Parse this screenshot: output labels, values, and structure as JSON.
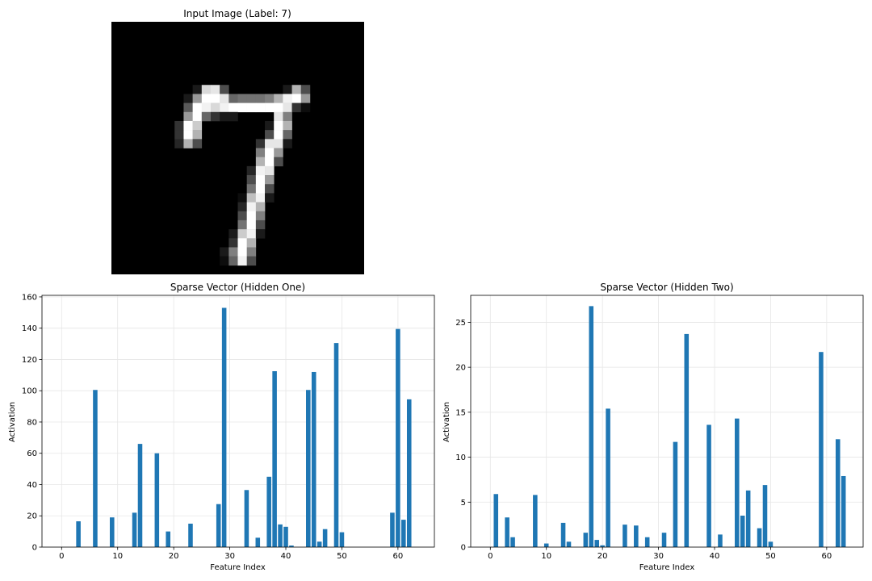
{
  "chart_data": [
    {
      "type": "heatmap",
      "title": "Input Image (Label: 7)",
      "colormap": "gray",
      "grid_size": [
        28,
        28
      ],
      "pixels_description_note": "",
      "pixels": [
        [
          0,
          0,
          0,
          0,
          0,
          0,
          0,
          0,
          0,
          0,
          0,
          0,
          0,
          0,
          0,
          0,
          0,
          0,
          0,
          0,
          0,
          0,
          0,
          0,
          0,
          0,
          0,
          0
        ],
        [
          0,
          0,
          0,
          0,
          0,
          0,
          0,
          0,
          0,
          0,
          0,
          0,
          0,
          0,
          0,
          0,
          0,
          0,
          0,
          0,
          0,
          0,
          0,
          0,
          0,
          0,
          0,
          0
        ],
        [
          0,
          0,
          0,
          0,
          0,
          0,
          0,
          0,
          0,
          0,
          0,
          0,
          0,
          0,
          0,
          0,
          0,
          0,
          0,
          0,
          0,
          0,
          0,
          0,
          0,
          0,
          0,
          0
        ],
        [
          0,
          0,
          0,
          0,
          0,
          0,
          0,
          0,
          0,
          0,
          0,
          0,
          0,
          0,
          0,
          0,
          0,
          0,
          0,
          0,
          0,
          0,
          0,
          0,
          0,
          0,
          0,
          0
        ],
        [
          0,
          0,
          0,
          0,
          0,
          0,
          0,
          0,
          0,
          0,
          0,
          0,
          0,
          0,
          0,
          0,
          0,
          0,
          0,
          0,
          0,
          0,
          0,
          0,
          0,
          0,
          0,
          0
        ],
        [
          0,
          0,
          0,
          0,
          0,
          0,
          0,
          0,
          0,
          0,
          0,
          0,
          0,
          0,
          0,
          0,
          0,
          0,
          0,
          0,
          0,
          0,
          0,
          0,
          0,
          0,
          0,
          0
        ],
        [
          0,
          0,
          0,
          0,
          0,
          0,
          0,
          0,
          0,
          0,
          0,
          0,
          0,
          0,
          0,
          0,
          0,
          0,
          0,
          0,
          0,
          0,
          0,
          0,
          0,
          0,
          0,
          0
        ],
        [
          0,
          0,
          0,
          0,
          0,
          0,
          0,
          0,
          0,
          0.1,
          0.85,
          0.9,
          0.3,
          0,
          0,
          0,
          0,
          0,
          0,
          0.1,
          0.7,
          0.3,
          0,
          0,
          0,
          0,
          0,
          0
        ],
        [
          0,
          0,
          0,
          0,
          0,
          0,
          0,
          0,
          0.1,
          0.6,
          1,
          1,
          0.9,
          0.4,
          0.45,
          0.45,
          0.45,
          0.5,
          0.7,
          0.95,
          1,
          0.6,
          0,
          0,
          0,
          0,
          0,
          0
        ],
        [
          0,
          0,
          0,
          0,
          0,
          0,
          0,
          0,
          0.35,
          1,
          0.95,
          0.85,
          0.95,
          1,
          1,
          1,
          1,
          1,
          1,
          0.9,
          0.2,
          0.05,
          0,
          0,
          0,
          0,
          0,
          0
        ],
        [
          0,
          0,
          0,
          0,
          0,
          0,
          0,
          0,
          0.6,
          1,
          0.4,
          0.2,
          0.1,
          0.1,
          0,
          0,
          0,
          0,
          0.9,
          0.5,
          0,
          0,
          0,
          0,
          0,
          0,
          0,
          0
        ],
        [
          0,
          0,
          0,
          0,
          0,
          0,
          0,
          0.2,
          1,
          0.8,
          0,
          0,
          0,
          0,
          0,
          0,
          0,
          0.1,
          1,
          0.7,
          0,
          0,
          0,
          0,
          0,
          0,
          0,
          0
        ],
        [
          0,
          0,
          0,
          0,
          0,
          0,
          0,
          0.2,
          1,
          0.7,
          0,
          0,
          0,
          0,
          0,
          0,
          0,
          0.3,
          1,
          0.4,
          0,
          0,
          0,
          0,
          0,
          0,
          0,
          0
        ],
        [
          0,
          0,
          0,
          0,
          0,
          0,
          0,
          0.15,
          0.7,
          0.3,
          0,
          0,
          0,
          0,
          0,
          0,
          0.2,
          0.9,
          0.9,
          0.1,
          0,
          0,
          0,
          0,
          0,
          0,
          0,
          0
        ],
        [
          0,
          0,
          0,
          0,
          0,
          0,
          0,
          0,
          0,
          0,
          0,
          0,
          0,
          0,
          0,
          0,
          0.5,
          1,
          0.6,
          0,
          0,
          0,
          0,
          0,
          0,
          0,
          0,
          0
        ],
        [
          0,
          0,
          0,
          0,
          0,
          0,
          0,
          0,
          0,
          0,
          0,
          0,
          0,
          0,
          0,
          0,
          0.7,
          1,
          0.3,
          0,
          0,
          0,
          0,
          0,
          0,
          0,
          0,
          0
        ],
        [
          0,
          0,
          0,
          0,
          0,
          0,
          0,
          0,
          0,
          0,
          0,
          0,
          0,
          0,
          0,
          0.15,
          0.95,
          0.9,
          0,
          0,
          0,
          0,
          0,
          0,
          0,
          0,
          0,
          0
        ],
        [
          0,
          0,
          0,
          0,
          0,
          0,
          0,
          0,
          0,
          0,
          0,
          0,
          0,
          0,
          0,
          0.3,
          1,
          0.6,
          0,
          0,
          0,
          0,
          0,
          0,
          0,
          0,
          0,
          0
        ],
        [
          0,
          0,
          0,
          0,
          0,
          0,
          0,
          0,
          0,
          0,
          0,
          0,
          0,
          0,
          0,
          0.45,
          1,
          0.3,
          0,
          0,
          0,
          0,
          0,
          0,
          0,
          0,
          0,
          0
        ],
        [
          0,
          0,
          0,
          0,
          0,
          0,
          0,
          0,
          0,
          0,
          0,
          0,
          0,
          0,
          0.05,
          0.75,
          0.95,
          0.1,
          0,
          0,
          0,
          0,
          0,
          0,
          0,
          0,
          0,
          0
        ],
        [
          0,
          0,
          0,
          0,
          0,
          0,
          0,
          0,
          0,
          0,
          0,
          0,
          0,
          0,
          0.15,
          0.95,
          0.7,
          0,
          0,
          0,
          0,
          0,
          0,
          0,
          0,
          0,
          0,
          0
        ],
        [
          0,
          0,
          0,
          0,
          0,
          0,
          0,
          0,
          0,
          0,
          0,
          0,
          0,
          0,
          0.3,
          1,
          0.5,
          0,
          0,
          0,
          0,
          0,
          0,
          0,
          0,
          0,
          0,
          0
        ],
        [
          0,
          0,
          0,
          0,
          0,
          0,
          0,
          0,
          0,
          0,
          0,
          0,
          0,
          0,
          0.45,
          1,
          0.3,
          0,
          0,
          0,
          0,
          0,
          0,
          0,
          0,
          0,
          0,
          0
        ],
        [
          0,
          0,
          0,
          0,
          0,
          0,
          0,
          0,
          0,
          0,
          0,
          0,
          0,
          0.1,
          0.8,
          0.95,
          0.1,
          0,
          0,
          0,
          0,
          0,
          0,
          0,
          0,
          0,
          0,
          0
        ],
        [
          0,
          0,
          0,
          0,
          0,
          0,
          0,
          0,
          0,
          0,
          0,
          0,
          0,
          0.2,
          1,
          0.7,
          0,
          0,
          0,
          0,
          0,
          0,
          0,
          0,
          0,
          0,
          0,
          0
        ],
        [
          0,
          0,
          0,
          0,
          0,
          0,
          0,
          0,
          0,
          0,
          0,
          0,
          0.1,
          0.5,
          1,
          0.5,
          0,
          0,
          0,
          0,
          0,
          0,
          0,
          0,
          0,
          0,
          0,
          0
        ],
        [
          0,
          0,
          0,
          0,
          0,
          0,
          0,
          0,
          0,
          0,
          0,
          0,
          0.05,
          0.4,
          0.95,
          0.3,
          0,
          0,
          0,
          0,
          0,
          0,
          0,
          0,
          0,
          0,
          0,
          0
        ],
        [
          0,
          0,
          0,
          0,
          0,
          0,
          0,
          0,
          0,
          0,
          0,
          0,
          0,
          0,
          0,
          0,
          0,
          0,
          0,
          0,
          0,
          0,
          0,
          0,
          0,
          0,
          0,
          0
        ]
      ]
    },
    {
      "type": "bar",
      "title": "Sparse Vector (Hidden One)",
      "xlabel": "Feature Index",
      "ylabel": "Activation",
      "xlim": [
        -3.5,
        66.5
      ],
      "ylim": [
        0,
        161
      ],
      "xticks": [
        0,
        10,
        20,
        30,
        40,
        50,
        60
      ],
      "yticks": [
        0,
        20,
        40,
        60,
        80,
        100,
        120,
        140,
        160
      ],
      "grid": true,
      "color": "#1f77b4",
      "x": [
        3,
        6,
        9,
        13,
        14,
        17,
        19,
        23,
        28,
        29,
        33,
        35,
        37,
        38,
        39,
        40,
        41,
        44,
        45,
        46,
        47,
        49,
        50,
        59,
        60,
        61,
        62
      ],
      "values": [
        16.5,
        100.5,
        19,
        22,
        66,
        60,
        10,
        15,
        27.5,
        153,
        36.5,
        6,
        45,
        112.5,
        14.5,
        13,
        1,
        100.5,
        112,
        3.5,
        11.5,
        130.5,
        9.5,
        22,
        139.5,
        17.5,
        94.5
      ]
    },
    {
      "type": "bar",
      "title": "Sparse Vector (Hidden Two)",
      "xlabel": "Feature Index",
      "ylabel": "Activation",
      "xlim": [
        -3.5,
        66.5
      ],
      "ylim": [
        0,
        28
      ],
      "xticks": [
        0,
        10,
        20,
        30,
        40,
        50,
        60
      ],
      "yticks": [
        0,
        5,
        10,
        15,
        20,
        25
      ],
      "grid": true,
      "color": "#1f77b4",
      "x": [
        1,
        3,
        4,
        8,
        10,
        13,
        14,
        17,
        18,
        19,
        20,
        21,
        24,
        26,
        28,
        31,
        33,
        35,
        39,
        41,
        44,
        45,
        46,
        48,
        49,
        50,
        59,
        62,
        63
      ],
      "values": [
        5.9,
        3.3,
        1.1,
        5.8,
        0.4,
        2.7,
        0.6,
        1.6,
        26.8,
        0.8,
        0.2,
        15.4,
        2.5,
        2.4,
        1.1,
        1.6,
        11.7,
        23.7,
        13.6,
        1.4,
        14.3,
        3.5,
        6.3,
        2.1,
        6.9,
        0.6,
        21.7,
        12.0,
        7.9
      ]
    }
  ]
}
